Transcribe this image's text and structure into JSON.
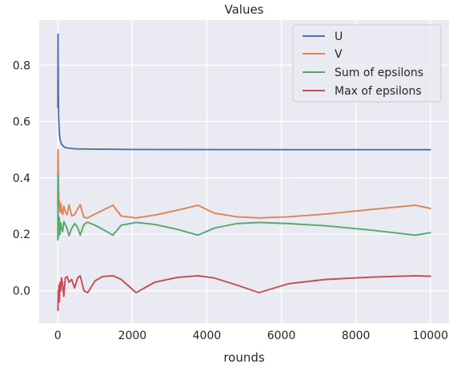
{
  "chart_data": {
    "type": "line",
    "title": "Values",
    "xlabel": "rounds",
    "ylabel": "",
    "xlim": [
      -500,
      10500
    ],
    "ylim": [
      -0.115,
      0.96
    ],
    "x_ticks": [
      0,
      2000,
      4000,
      6000,
      8000,
      10000
    ],
    "x_tick_labels": [
      "0",
      "2000",
      "4000",
      "6000",
      "8000",
      "10000"
    ],
    "y_ticks": [
      0.0,
      0.2,
      0.4,
      0.6,
      0.8
    ],
    "y_tick_labels": [
      "0.0",
      "0.2",
      "0.4",
      "0.6",
      "0.8"
    ],
    "grid": true,
    "legend_position": "upper right",
    "background_color": "#eaeaf2",
    "series": [
      {
        "name": "U",
        "color": "#4c72b0",
        "x": [
          0,
          5,
          10,
          20,
          40,
          60,
          100,
          150,
          200,
          300,
          500,
          1000,
          2000,
          4000,
          6000,
          8000,
          10000
        ],
        "y": [
          0.65,
          0.91,
          0.8,
          0.62,
          0.56,
          0.535,
          0.52,
          0.512,
          0.508,
          0.505,
          0.503,
          0.502,
          0.501,
          0.5005,
          0.5003,
          0.5002,
          0.5
        ]
      },
      {
        "name": "V",
        "color": "#dd8452",
        "x": [
          0,
          5,
          10,
          20,
          30,
          40,
          60,
          80,
          100,
          130,
          160,
          200,
          250,
          300,
          370,
          450,
          530,
          600,
          700,
          800,
          1000,
          1200,
          1480,
          1700,
          2100,
          2600,
          3200,
          3760,
          4200,
          4800,
          5400,
          6200,
          7200,
          8400,
          9600,
          10000
        ],
        "y": [
          0.3,
          0.5,
          0.47,
          0.36,
          0.3,
          0.32,
          0.28,
          0.31,
          0.28,
          0.27,
          0.3,
          0.28,
          0.27,
          0.305,
          0.265,
          0.27,
          0.29,
          0.305,
          0.26,
          0.258,
          0.272,
          0.285,
          0.303,
          0.265,
          0.258,
          0.268,
          0.285,
          0.303,
          0.275,
          0.262,
          0.258,
          0.262,
          0.272,
          0.288,
          0.303,
          0.292
        ]
      },
      {
        "name": "Sum of epsilons",
        "color": "#55a868",
        "x": [
          0,
          5,
          10,
          20,
          30,
          40,
          60,
          80,
          100,
          130,
          160,
          200,
          250,
          300,
          370,
          450,
          530,
          600,
          700,
          800,
          1000,
          1200,
          1480,
          1700,
          2100,
          2600,
          3200,
          3760,
          4200,
          4800,
          5400,
          6200,
          7200,
          8400,
          9600,
          10000
        ],
        "y": [
          0.18,
          0.41,
          0.25,
          0.19,
          0.22,
          0.26,
          0.2,
          0.24,
          0.22,
          0.21,
          0.245,
          0.235,
          0.22,
          0.195,
          0.22,
          0.238,
          0.225,
          0.197,
          0.235,
          0.243,
          0.232,
          0.218,
          0.197,
          0.232,
          0.242,
          0.235,
          0.218,
          0.197,
          0.222,
          0.238,
          0.242,
          0.238,
          0.23,
          0.215,
          0.197,
          0.206
        ]
      },
      {
        "name": "Max of epsilons",
        "color": "#c44e52",
        "x": [
          0,
          5,
          10,
          20,
          30,
          40,
          60,
          80,
          100,
          130,
          160,
          200,
          250,
          300,
          370,
          450,
          530,
          600,
          700,
          800,
          1000,
          1200,
          1480,
          1700,
          2100,
          2600,
          3200,
          3760,
          4200,
          4800,
          5400,
          6200,
          7200,
          8400,
          9600,
          10000
        ],
        "y": [
          -0.06,
          -0.07,
          0.0,
          -0.01,
          0.02,
          -0.04,
          0.03,
          0.0,
          0.045,
          0.02,
          -0.02,
          0.045,
          0.05,
          0.03,
          0.04,
          0.01,
          0.045,
          0.053,
          0.0,
          -0.007,
          0.035,
          0.05,
          0.053,
          0.04,
          -0.007,
          0.03,
          0.047,
          0.053,
          0.045,
          0.02,
          -0.007,
          0.025,
          0.04,
          0.048,
          0.053,
          0.051
        ]
      }
    ]
  }
}
